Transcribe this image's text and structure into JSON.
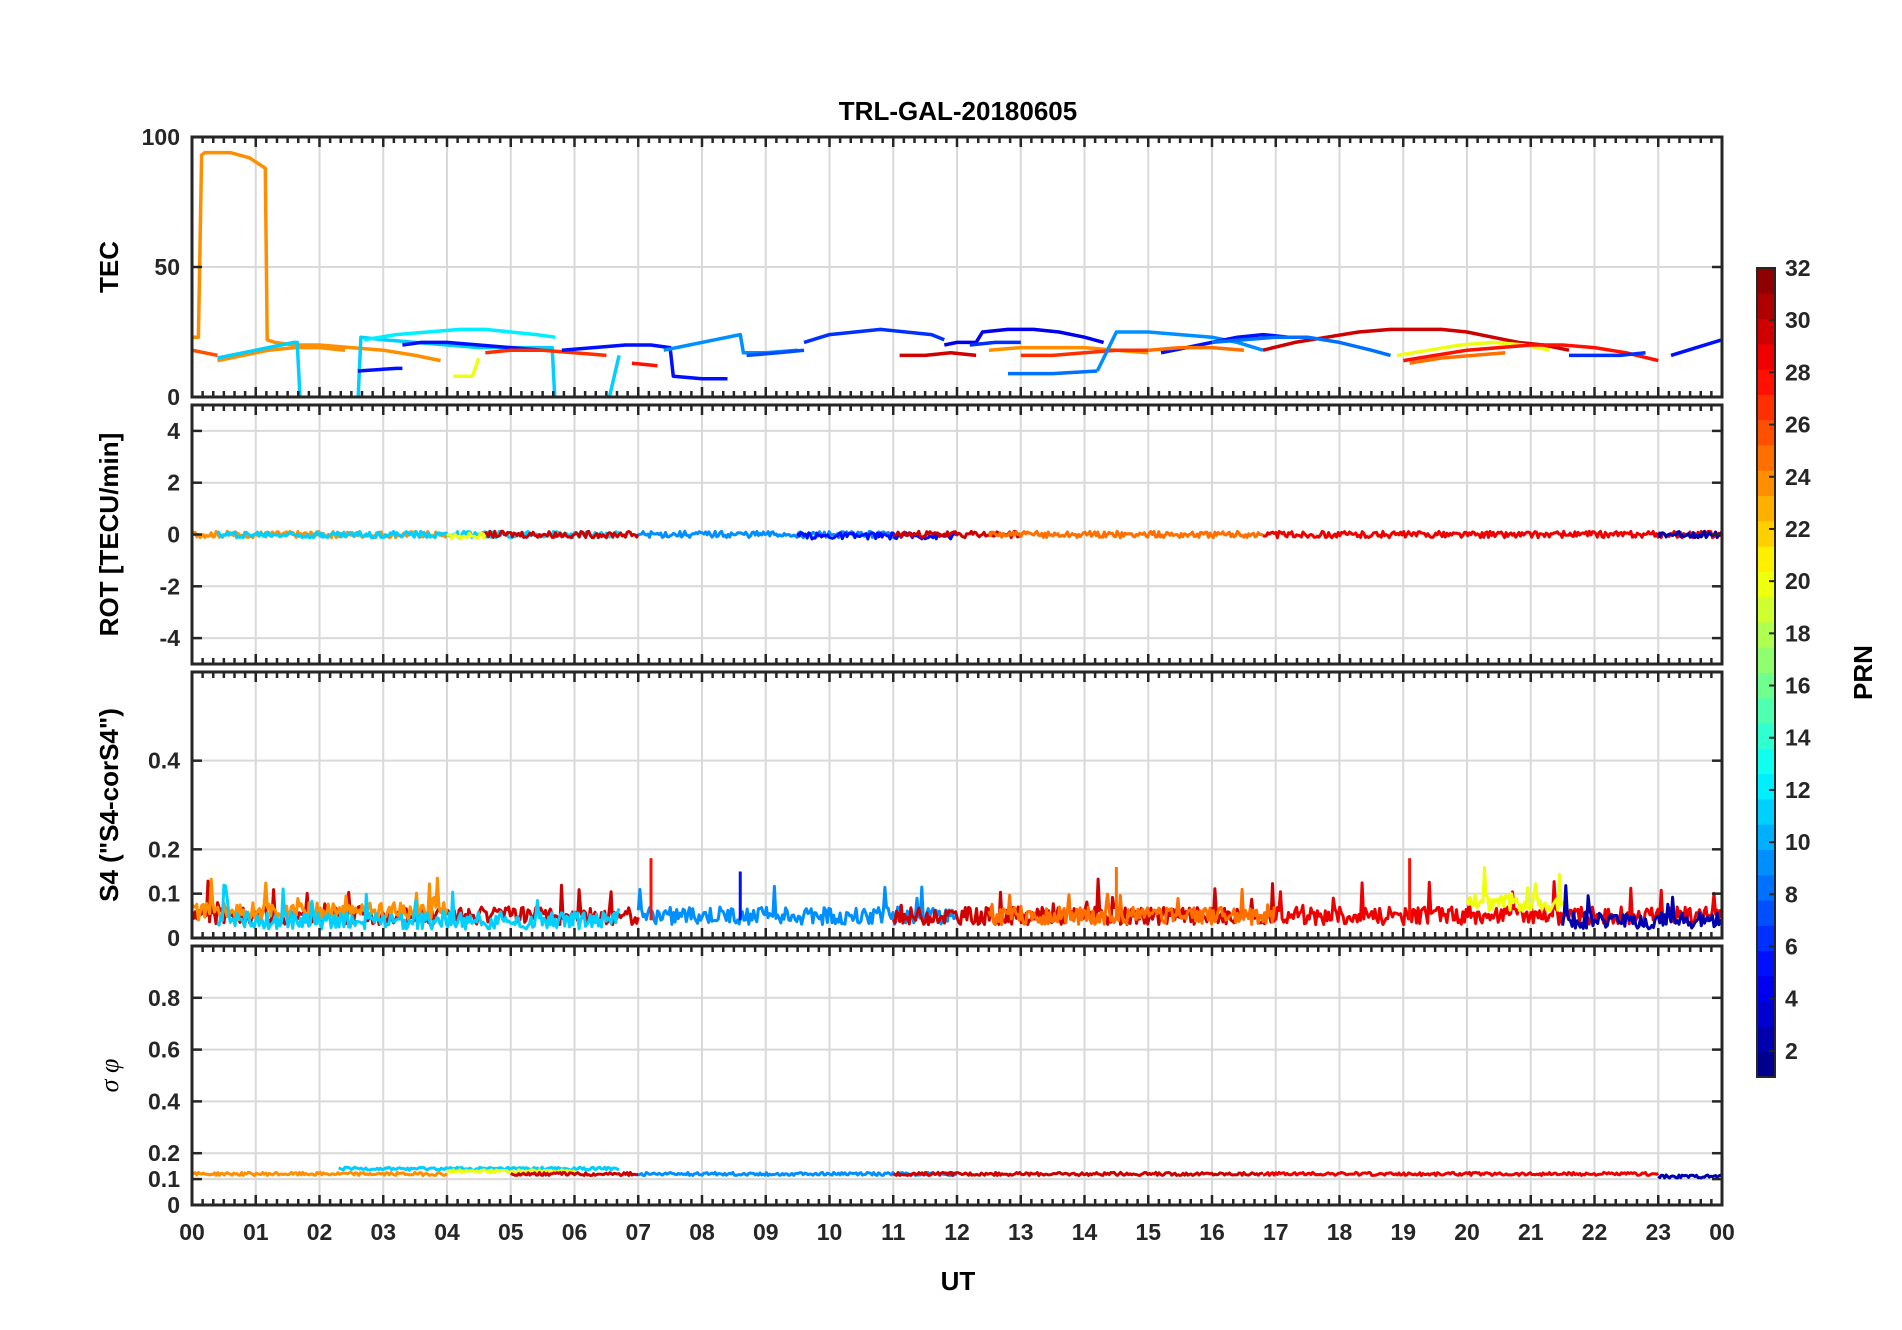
{
  "chart_data": {
    "title": "TRL-GAL-20180605",
    "xlabel": "UT",
    "x_tick_labels": [
      "00",
      "01",
      "02",
      "03",
      "04",
      "05",
      "06",
      "07",
      "08",
      "09",
      "10",
      "11",
      "12",
      "13",
      "14",
      "15",
      "16",
      "17",
      "18",
      "19",
      "20",
      "21",
      "22",
      "23",
      "00"
    ],
    "xlim": [
      0,
      24
    ],
    "colorbar": {
      "label": "PRN",
      "range": [
        1,
        32
      ],
      "tick_labels": [
        "2",
        "4",
        "6",
        "8",
        "10",
        "12",
        "14",
        "16",
        "18",
        "20",
        "22",
        "24",
        "26",
        "28",
        "30",
        "32"
      ],
      "colormap": "jet"
    },
    "panels": [
      {
        "type": "line",
        "ylabel": "TEC",
        "ylim": [
          0,
          100
        ],
        "y_tick_labels": [
          "0",
          "50",
          "100"
        ],
        "grid": true,
        "series": [
          {
            "prn": 24,
            "x": [
              0.0,
              0.1,
              0.15,
              0.2,
              0.3,
              0.6,
              0.9,
              1.15,
              1.18,
              1.3,
              1.6,
              2.0,
              2.5,
              3.0,
              3.5,
              3.9
            ],
            "y": [
              23,
              23,
              93,
              94,
              94,
              94,
              92,
              88,
              22,
              21,
              20,
              20,
              19,
              18,
              16,
              14
            ]
          },
          {
            "prn": 26,
            "x": [
              0.0,
              0.2,
              0.4
            ],
            "y": [
              18,
              17,
              16
            ]
          },
          {
            "prn": 24,
            "x": [
              0.4,
              0.8,
              1.2,
              1.6,
              2.0,
              2.4
            ],
            "y": [
              14,
              16,
              18,
              19,
              19,
              18
            ]
          },
          {
            "prn": 11,
            "x": [
              0.4,
              0.8,
              1.2,
              1.6,
              1.65,
              1.7,
              2.1,
              2.6,
              2.65,
              3.0,
              3.5,
              4.0,
              4.5,
              5.0,
              5.5,
              5.65,
              5.7,
              6.0,
              6.5,
              6.7
            ],
            "y": [
              15,
              17,
              19,
              21,
              21,
              -3,
              -3,
              -3,
              23,
              22,
              21,
              20,
              19,
              19,
              19,
              19,
              -5,
              -5,
              -5,
              16
            ]
          },
          {
            "prn": 12,
            "x": [
              2.7,
              3.2,
              3.7,
              4.2,
              4.6,
              5.0,
              5.4,
              5.7
            ],
            "y": [
              22,
              24,
              25,
              26,
              26,
              25,
              24,
              23
            ]
          },
          {
            "prn": 5,
            "x": [
              2.6,
              3.2,
              3.3
            ],
            "y": [
              10,
              11,
              11
            ]
          },
          {
            "prn": 5,
            "x": [
              3.3,
              3.6,
              4.0,
              4.5,
              5.0,
              5.5
            ],
            "y": [
              20,
              21,
              21,
              20,
              19,
              18
            ]
          },
          {
            "prn": 20,
            "x": [
              4.1,
              4.4,
              4.5
            ],
            "y": [
              8,
              8,
              15
            ]
          },
          {
            "prn": 27,
            "x": [
              4.6,
              5.0,
              5.5,
              6.0,
              6.5
            ],
            "y": [
              17,
              18,
              18,
              17,
              16
            ]
          },
          {
            "prn": 5,
            "x": [
              5.8,
              6.3,
              6.8,
              7.2,
              7.5,
              7.55,
              8.0,
              8.4
            ],
            "y": [
              18,
              19,
              20,
              20,
              19,
              8,
              7,
              7
            ]
          },
          {
            "prn": 28,
            "x": [
              6.9,
              7.3
            ],
            "y": [
              13,
              12
            ]
          },
          {
            "prn": 9,
            "x": [
              7.4,
              7.8,
              8.2,
              8.6,
              8.65,
              9.0,
              9.5
            ],
            "y": [
              18,
              20,
              22,
              24,
              17,
              17,
              18
            ]
          },
          {
            "prn": 7,
            "x": [
              8.7,
              9.2,
              9.6
            ],
            "y": [
              16,
              17,
              18
            ]
          },
          {
            "prn": 6,
            "x": [
              9.6,
              10.0,
              10.4,
              10.8,
              11.2,
              11.6,
              11.8
            ],
            "y": [
              21,
              24,
              25,
              26,
              25,
              24,
              22
            ]
          },
          {
            "prn": 4,
            "x": [
              11.8,
              12.0,
              12.3,
              12.4,
              12.8,
              13.2,
              13.6,
              14.0,
              14.3
            ],
            "y": [
              20,
              21,
              21,
              25,
              26,
              26,
              25,
              23,
              21
            ]
          },
          {
            "prn": 30,
            "x": [
              11.1,
              11.5,
              11.9,
              12.3
            ],
            "y": [
              16,
              16,
              17,
              16
            ]
          },
          {
            "prn": 6,
            "x": [
              12.2,
              12.6,
              13.0
            ],
            "y": [
              20,
              21,
              21
            ]
          },
          {
            "prn": 24,
            "x": [
              12.5,
              13.0,
              13.5,
              14.0,
              14.5,
              15.0
            ],
            "y": [
              18,
              19,
              19,
              19,
              18,
              17
            ]
          },
          {
            "prn": 27,
            "x": [
              13.0,
              13.5,
              14.0,
              14.5,
              15.0
            ],
            "y": [
              16,
              16,
              17,
              18,
              18
            ]
          },
          {
            "prn": 8,
            "x": [
              12.8,
              13.5,
              14.2
            ],
            "y": [
              9,
              9,
              10
            ]
          },
          {
            "prn": 9,
            "x": [
              14.2,
              14.5,
              15.0,
              15.5,
              16.0,
              16.4,
              16.8
            ],
            "y": [
              10,
              25,
              25,
              24,
              23,
              21,
              18
            ]
          },
          {
            "prn": 5,
            "x": [
              15.2,
              15.6,
              16.0,
              16.4,
              16.8,
              17.2
            ],
            "y": [
              17,
              19,
              21,
              23,
              24,
              23
            ]
          },
          {
            "prn": 25,
            "x": [
              15.0,
              15.5,
              16.0,
              16.5
            ],
            "y": [
              18,
              19,
              19,
              18
            ]
          },
          {
            "prn": 30,
            "x": [
              16.8,
              17.3,
              17.8,
              18.3,
              18.8,
              19.2,
              19.6,
              20.0,
              20.4,
              20.8,
              21.2,
              21.6
            ],
            "y": [
              18,
              21,
              23,
              25,
              26,
              26,
              26,
              25,
              23,
              21,
              20,
              18
            ]
          },
          {
            "prn": 8,
            "x": [
              16.0,
              16.5,
              17.0,
              17.5,
              18.0,
              18.5,
              18.8
            ],
            "y": [
              21,
              22,
              23,
              23,
              21,
              18,
              16
            ]
          },
          {
            "prn": 20,
            "x": [
              18.9,
              19.4,
              19.9,
              20.4,
              20.9,
              21.3
            ],
            "y": [
              16,
              18,
              20,
              21,
              20,
              18
            ]
          },
          {
            "prn": 28,
            "x": [
              19.0,
              19.5,
              20.0,
              20.5,
              21.0,
              21.5,
              22.0,
              22.5,
              23.0
            ],
            "y": [
              14,
              16,
              18,
              19,
              20,
              20,
              19,
              17,
              14
            ]
          },
          {
            "prn": 25,
            "x": [
              19.1,
              19.6,
              20.1,
              20.6
            ],
            "y": [
              13,
              15,
              16,
              17
            ]
          },
          {
            "prn": 6,
            "x": [
              21.6,
              22.0,
              22.4,
              22.8
            ],
            "y": [
              16,
              16,
              16,
              17
            ]
          },
          {
            "prn": 5,
            "x": [
              23.2,
              23.6,
              24.0
            ],
            "y": [
              16,
              19,
              22
            ]
          }
        ]
      },
      {
        "type": "line",
        "ylabel": "ROT [TECU/min]",
        "ylim": [
          -5,
          5
        ],
        "y_tick_labels": [
          "-4",
          "-2",
          "0",
          "2",
          "4"
        ],
        "grid": true,
        "series": [
          {
            "prn": 24,
            "x": [
              0.0,
              4.0
            ],
            "y": [
              0.0,
              0.0
            ]
          },
          {
            "prn": 11,
            "x": [
              0.4,
              6.7
            ],
            "y": [
              0.0,
              0.0
            ]
          },
          {
            "prn": 20,
            "x": [
              4.0,
              4.6
            ],
            "y": [
              -0.05,
              -0.05
            ]
          },
          {
            "prn": 30,
            "x": [
              4.6,
              7.0
            ],
            "y": [
              0.0,
              0.0
            ]
          },
          {
            "prn": 9,
            "x": [
              7.0,
              11.0
            ],
            "y": [
              0.0,
              0.0
            ]
          },
          {
            "prn": 5,
            "x": [
              9.5,
              12.0
            ],
            "y": [
              -0.05,
              -0.05
            ]
          },
          {
            "prn": 30,
            "x": [
              11.0,
              13.0
            ],
            "y": [
              0.0,
              0.0
            ]
          },
          {
            "prn": 25,
            "x": [
              12.5,
              16.8
            ],
            "y": [
              0.0,
              0.0
            ]
          },
          {
            "prn": 29,
            "x": [
              16.8,
              24.0
            ],
            "y": [
              0.0,
              0.0
            ]
          },
          {
            "prn": 2,
            "x": [
              23.0,
              24.0
            ],
            "y": [
              0.0,
              0.0
            ]
          }
        ]
      },
      {
        "type": "line",
        "ylabel": "S4 (\"S4-corS4\")",
        "ylim": [
          0,
          0.6
        ],
        "y_tick_labels": [
          "0",
          "0.1",
          "0.2",
          "0.4"
        ],
        "grid": true,
        "series": [
          {
            "prn": 30,
            "x": [
              0.0,
              7.0
            ],
            "y": [
              0.05,
              0.05
            ]
          },
          {
            "prn": 24,
            "x": [
              0.0,
              4.0
            ],
            "y": [
              0.06,
              0.06
            ]
          },
          {
            "prn": 11,
            "x": [
              0.4,
              6.7
            ],
            "y": [
              0.04,
              0.04
            ]
          },
          {
            "prn": 9,
            "x": [
              7.0,
              12.0
            ],
            "y": [
              0.05,
              0.05
            ]
          },
          {
            "prn": 30,
            "x": [
              11.0,
              17.0
            ],
            "y": [
              0.05,
              0.05
            ]
          },
          {
            "prn": 25,
            "x": [
              12.5,
              17.0
            ],
            "y": [
              0.05,
              0.05
            ]
          },
          {
            "prn": 29,
            "x": [
              17.0,
              24.0
            ],
            "y": [
              0.05,
              0.05
            ]
          },
          {
            "prn": 20,
            "x": [
              20.0,
              21.5
            ],
            "y": [
              0.08,
              0.08
            ]
          },
          {
            "prn": 2,
            "x": [
              21.5,
              24.0
            ],
            "y": [
              0.04,
              0.04
            ]
          }
        ],
        "peaks": [
          {
            "prn": 28,
            "x": 7.2,
            "y": 0.18
          },
          {
            "prn": 25,
            "x": 14.5,
            "y": 0.16
          },
          {
            "prn": 28,
            "x": 19.1,
            "y": 0.18
          },
          {
            "prn": 5,
            "x": 8.6,
            "y": 0.15
          }
        ]
      },
      {
        "type": "line",
        "ylabel": "σ φ",
        "ylim": [
          0,
          1
        ],
        "y_tick_labels": [
          "0",
          "0.1",
          "0.2",
          "0.4",
          "0.6",
          "0.8"
        ],
        "grid": true,
        "series": [
          {
            "prn": 24,
            "x": [
              0.0,
              4.0
            ],
            "y": [
              0.12,
              0.12
            ]
          },
          {
            "prn": 11,
            "x": [
              2.3,
              6.7
            ],
            "y": [
              0.14,
              0.14
            ]
          },
          {
            "prn": 20,
            "x": [
              4.0,
              6.0
            ],
            "y": [
              0.13,
              0.13
            ]
          },
          {
            "prn": 30,
            "x": [
              5.0,
              7.0
            ],
            "y": [
              0.12,
              0.12
            ]
          },
          {
            "prn": 9,
            "x": [
              7.0,
              12.0
            ],
            "y": [
              0.12,
              0.12
            ]
          },
          {
            "prn": 30,
            "x": [
              11.0,
              16.8
            ],
            "y": [
              0.12,
              0.12
            ]
          },
          {
            "prn": 29,
            "x": [
              16.8,
              23.0
            ],
            "y": [
              0.12,
              0.12
            ]
          },
          {
            "prn": 2,
            "x": [
              23.0,
              24.0
            ],
            "y": [
              0.11,
              0.11
            ]
          }
        ]
      }
    ]
  }
}
